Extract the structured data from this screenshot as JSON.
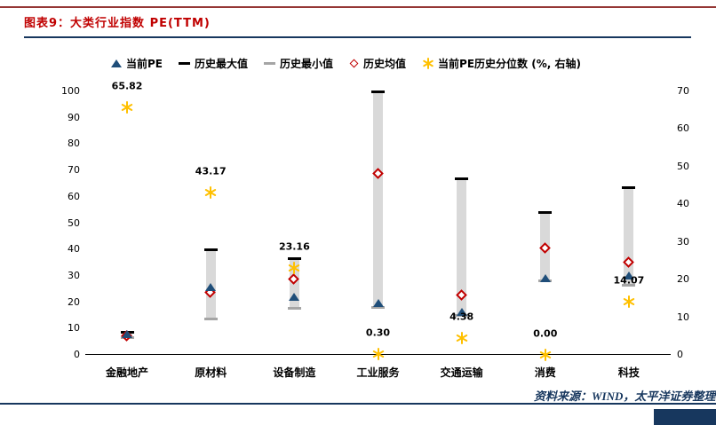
{
  "page": {
    "title": "图表9：大类行业指数 PE(TTM)",
    "source": "资料来源：WIND，太平洋证券整理"
  },
  "colors": {
    "accent_red": "#C00000",
    "navy": "#17375E",
    "rule_red": "#953735"
  },
  "chart_data": {
    "type": "combo",
    "title": "大类行业指数 PE(TTM)",
    "categories": [
      "金融地产",
      "原材料",
      "设备制造",
      "工业服务",
      "交通运输",
      "消费",
      "科技"
    ],
    "left_axis": {
      "min": 0,
      "max": 100,
      "step": 10
    },
    "right_axis": {
      "min": 0,
      "max": 70,
      "step": 10,
      "label": "%（右轴）"
    },
    "range_bar_color": "#D9D9D9",
    "grid": false,
    "legend_position": "top",
    "series": [
      {
        "name": "当前PE",
        "role": "current",
        "marker": "triangle",
        "color": "#1F4E79",
        "values": [
          7.8,
          25.5,
          22.0,
          19.5,
          16.0,
          29.0,
          30.0
        ]
      },
      {
        "name": "历史最大值",
        "role": "max",
        "marker": "dash",
        "color": "#000000",
        "values": [
          8.6,
          40.0,
          36.5,
          100.0,
          67.0,
          54.0,
          63.5
        ]
      },
      {
        "name": "历史最小值",
        "role": "min",
        "marker": "dash",
        "color": "#A5A5A5",
        "values": [
          6.6,
          13.8,
          17.8,
          18.0,
          15.0,
          28.0,
          26.5
        ]
      },
      {
        "name": "历史均值",
        "role": "mean",
        "marker": "diamond",
        "color": "#C00000",
        "values": [
          7.2,
          23.7,
          28.6,
          68.8,
          22.5,
          40.5,
          35.0
        ]
      },
      {
        "name": "当前PE历史分位数 (%, 右轴)",
        "role": "percentile",
        "marker": "asterisk",
        "color": "#FFC000",
        "axis": "right",
        "values": [
          65.82,
          43.17,
          23.16,
          0.3,
          4.38,
          0.0,
          14.07
        ],
        "labels": [
          "65.82",
          "43.17",
          "23.16",
          "0.30",
          "4.38",
          "0.00",
          "14.07"
        ]
      }
    ]
  }
}
